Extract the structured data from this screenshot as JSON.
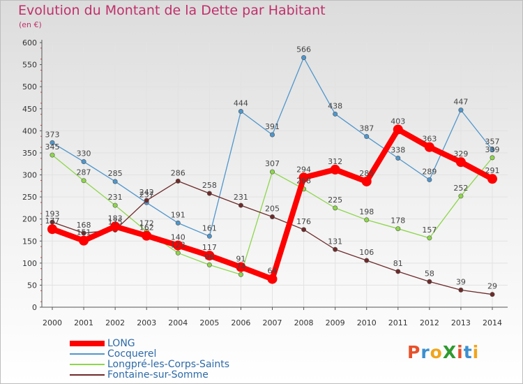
{
  "title": "Evolution du Montant de la Dette par Habitant",
  "subtitle": "(en €)",
  "logo": {
    "text": "ProXiti",
    "colors": [
      "#e8502a",
      "#3b8fd0",
      "#f1a51c",
      "#2f9a2f",
      "#e8502a",
      "#3b8fd0",
      "#f1a51c"
    ]
  },
  "chart_data": {
    "type": "line",
    "x": [
      "2000",
      "2001",
      "2002",
      "2003",
      "2004",
      "2005",
      "2006",
      "2007",
      "2008",
      "2009",
      "2010",
      "2011",
      "2012",
      "2013",
      "2014"
    ],
    "ylim": [
      0,
      600
    ],
    "yticks": [
      0,
      50,
      100,
      150,
      200,
      250,
      300,
      350,
      400,
      450,
      500,
      550,
      600
    ],
    "grid": true,
    "legend_position": "bottom-left",
    "series": [
      {
        "name": "Cocquerel",
        "color": "#4f96cc",
        "values": [
          373,
          330,
          285,
          237,
          191,
          161,
          444,
          391,
          566,
          438,
          387,
          338,
          289,
          447,
          357
        ]
      },
      {
        "name": "Longpré-les-Corps-Saints",
        "color": "#8dd64a",
        "values": [
          345,
          287,
          231,
          172,
          123,
          96,
          74,
          307,
          268,
          225,
          198,
          178,
          157,
          252,
          339
        ]
      },
      {
        "name": "Fontaine-sur-Somme",
        "color": "#6e2a2a",
        "values": [
          193,
          168,
          175,
          242,
          286,
          258,
          231,
          205,
          176,
          131,
          106,
          81,
          58,
          39,
          29
        ]
      },
      {
        "name": "LONG",
        "color": "#ff0000",
        "values": [
          177,
          151,
          183,
          162,
          140,
          117,
          91,
          64,
          294,
          312,
          285,
          403,
          363,
          329,
          291
        ]
      }
    ]
  }
}
